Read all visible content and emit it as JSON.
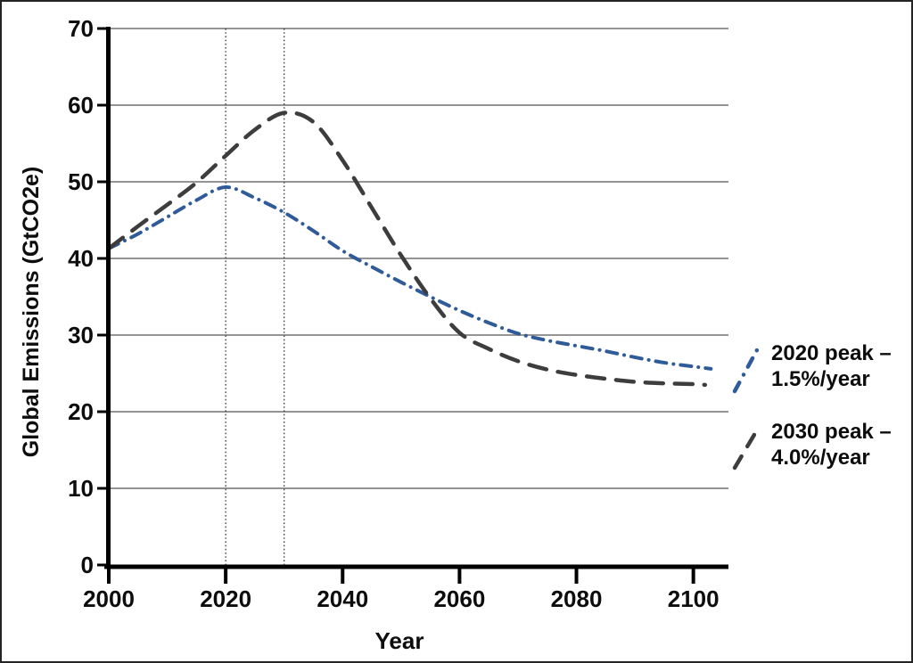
{
  "chart_data": {
    "type": "line",
    "title": "",
    "xlabel": "Year",
    "ylabel": "Global Emissions (GtCO2e)",
    "xlim": [
      2000,
      2106
    ],
    "ylim": [
      0,
      70
    ],
    "x_ticks": [
      2000,
      2020,
      2040,
      2060,
      2080,
      2100
    ],
    "y_ticks": [
      0,
      10,
      20,
      30,
      40,
      50,
      60,
      70
    ],
    "grid": "horizontal",
    "reference_lines_x": [
      2020,
      2030
    ],
    "legend_position": "right-outside",
    "series": [
      {
        "name": "2020 peak – 1.5%/year",
        "label_lines": [
          "2020 peak –",
          "1.5%/year"
        ],
        "style": "dash-dot",
        "color": "#2F5B98",
        "x": [
          2000,
          2005,
          2010,
          2015,
          2020,
          2025,
          2030,
          2035,
          2040,
          2045,
          2050,
          2055,
          2060,
          2065,
          2070,
          2075,
          2080,
          2085,
          2090,
          2095,
          2100,
          2103
        ],
        "y": [
          41.3,
          43.2,
          45.4,
          47.6,
          49.3,
          47.9,
          46.0,
          43.6,
          41.0,
          38.9,
          36.9,
          35.0,
          33.2,
          31.6,
          30.2,
          29.3,
          28.6,
          27.9,
          27.1,
          26.4,
          25.9,
          25.6
        ]
      },
      {
        "name": "2030 peak – 4.0%/year",
        "label_lines": [
          "2030 peak –",
          "4.0%/year"
        ],
        "style": "dashed",
        "color": "#3D3D3D",
        "x": [
          2000,
          2005,
          2010,
          2015,
          2020,
          2025,
          2030,
          2035,
          2040,
          2045,
          2050,
          2055,
          2060,
          2065,
          2070,
          2075,
          2080,
          2085,
          2090,
          2095,
          2100,
          2102
        ],
        "y": [
          41.3,
          44.2,
          47.0,
          49.9,
          53.4,
          56.8,
          59.0,
          57.8,
          52.8,
          46.6,
          40.4,
          34.8,
          30.3,
          28.2,
          26.6,
          25.5,
          24.8,
          24.3,
          23.9,
          23.7,
          23.6,
          23.5
        ]
      }
    ]
  },
  "colors": {
    "background": "#FFFFFF",
    "border": "#242424",
    "axis": "#000000",
    "grid": "#949494",
    "reference_line": "#3A3A3A",
    "text": "#0D0D0D"
  }
}
